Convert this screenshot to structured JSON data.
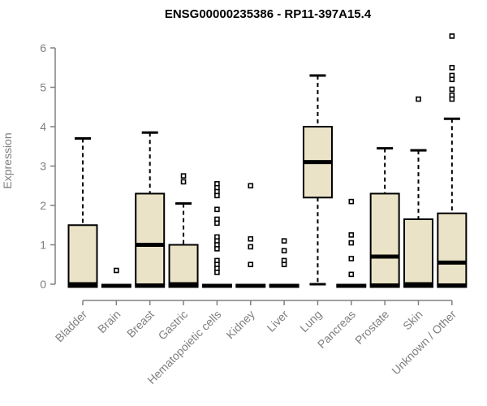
{
  "chart_data": {
    "type": "boxplot",
    "title": "ENSG00000235386 - RP11-397A15.4",
    "xlabel": "",
    "ylabel": "Expression",
    "ylim": [
      0,
      6.5
    ],
    "yticks": [
      0,
      1,
      2,
      3,
      4,
      5,
      6
    ],
    "grid": false,
    "legend": "none",
    "colors": {
      "box_fill": "#EBE3C7",
      "box_border": "#000000",
      "whisker": "#000000",
      "axis": "#808080",
      "tick_label": "#7f7f7f",
      "title": "#000000",
      "outlier_fill": "#ffffff",
      "outlier_border": "#000000"
    },
    "categories": [
      "Bladder",
      "Brain",
      "Breast",
      "Gastric",
      "Hematopoietic cells",
      "Kidney",
      "Liver",
      "Lung",
      "Pancreas",
      "Prostate",
      "Skin",
      "Unknown / Other"
    ],
    "groups": [
      {
        "label": "Bladder",
        "min": 0,
        "q1": 0,
        "median": 0,
        "q3": 1.5,
        "whisker_high": 3.7,
        "outliers": []
      },
      {
        "label": "Brain",
        "min": 0,
        "q1": 0,
        "median": 0,
        "q3": 0,
        "whisker_high": 0,
        "outliers": [
          0.35
        ]
      },
      {
        "label": "Breast",
        "min": 0,
        "q1": 0,
        "median": 1.0,
        "q3": 2.3,
        "whisker_high": 3.85,
        "outliers": []
      },
      {
        "label": "Gastric",
        "min": 0,
        "q1": 0,
        "median": 0,
        "q3": 1.0,
        "whisker_high": 2.05,
        "outliers": [
          2.75,
          2.6
        ]
      },
      {
        "label": "Hematopoietic cells",
        "min": 0,
        "q1": 0,
        "median": 0,
        "q3": 0,
        "whisker_high": 0,
        "outliers": [
          2.55,
          2.45,
          2.35,
          2.25,
          1.9,
          1.65,
          1.55,
          1.2,
          1.1,
          1.0,
          0.9,
          0.6,
          0.5,
          0.4,
          0.3
        ]
      },
      {
        "label": "Kidney",
        "min": 0,
        "q1": 0,
        "median": 0,
        "q3": 0,
        "whisker_high": 0,
        "outliers": [
          2.5,
          1.15,
          0.95,
          0.5
        ]
      },
      {
        "label": "Liver",
        "min": 0,
        "q1": 0,
        "median": 0,
        "q3": 0,
        "whisker_high": 0,
        "outliers": [
          1.1,
          0.85,
          0.6,
          0.5
        ]
      },
      {
        "label": "Lung",
        "min": 0,
        "q1": 2.2,
        "median": 3.1,
        "q3": 4.0,
        "whisker_high": 5.3,
        "outliers": []
      },
      {
        "label": "Pancreas",
        "min": 0,
        "q1": 0,
        "median": 0,
        "q3": 0,
        "whisker_high": 0,
        "outliers": [
          2.1,
          1.25,
          1.05,
          0.65,
          0.25
        ]
      },
      {
        "label": "Prostate",
        "min": 0,
        "q1": 0,
        "median": 0.7,
        "q3": 2.3,
        "whisker_high": 3.45,
        "outliers": []
      },
      {
        "label": "Skin",
        "min": 0,
        "q1": 0,
        "median": 0,
        "q3": 1.65,
        "whisker_high": 3.4,
        "outliers": [
          4.7
        ]
      },
      {
        "label": "Unknown / Other",
        "min": 0,
        "q1": 0,
        "median": 0.55,
        "q3": 1.8,
        "whisker_high": 4.2,
        "outliers": [
          6.3,
          5.5,
          5.3,
          5.2,
          4.95,
          4.8,
          4.7
        ]
      }
    ]
  }
}
